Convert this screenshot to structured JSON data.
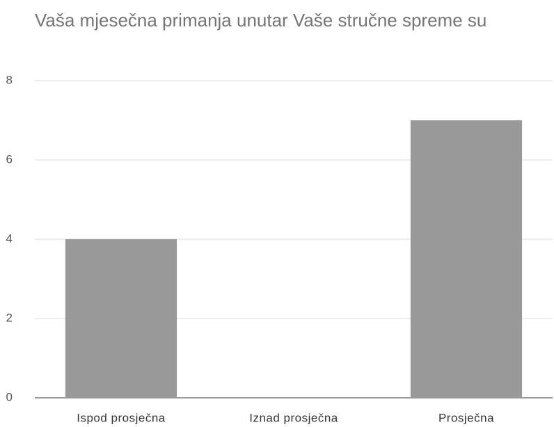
{
  "chart_data": {
    "type": "bar",
    "title": "Vaša mjesečna primanja unutar Vaše stručne spreme su",
    "categories": [
      "Ispod prosječna",
      "Iznad prosječna",
      "Prosječna"
    ],
    "values": [
      4,
      0,
      7
    ],
    "color": "#999999",
    "ylim": [
      0,
      8
    ],
    "yticks": [
      0,
      2,
      4,
      6,
      8
    ],
    "grid": true
  }
}
